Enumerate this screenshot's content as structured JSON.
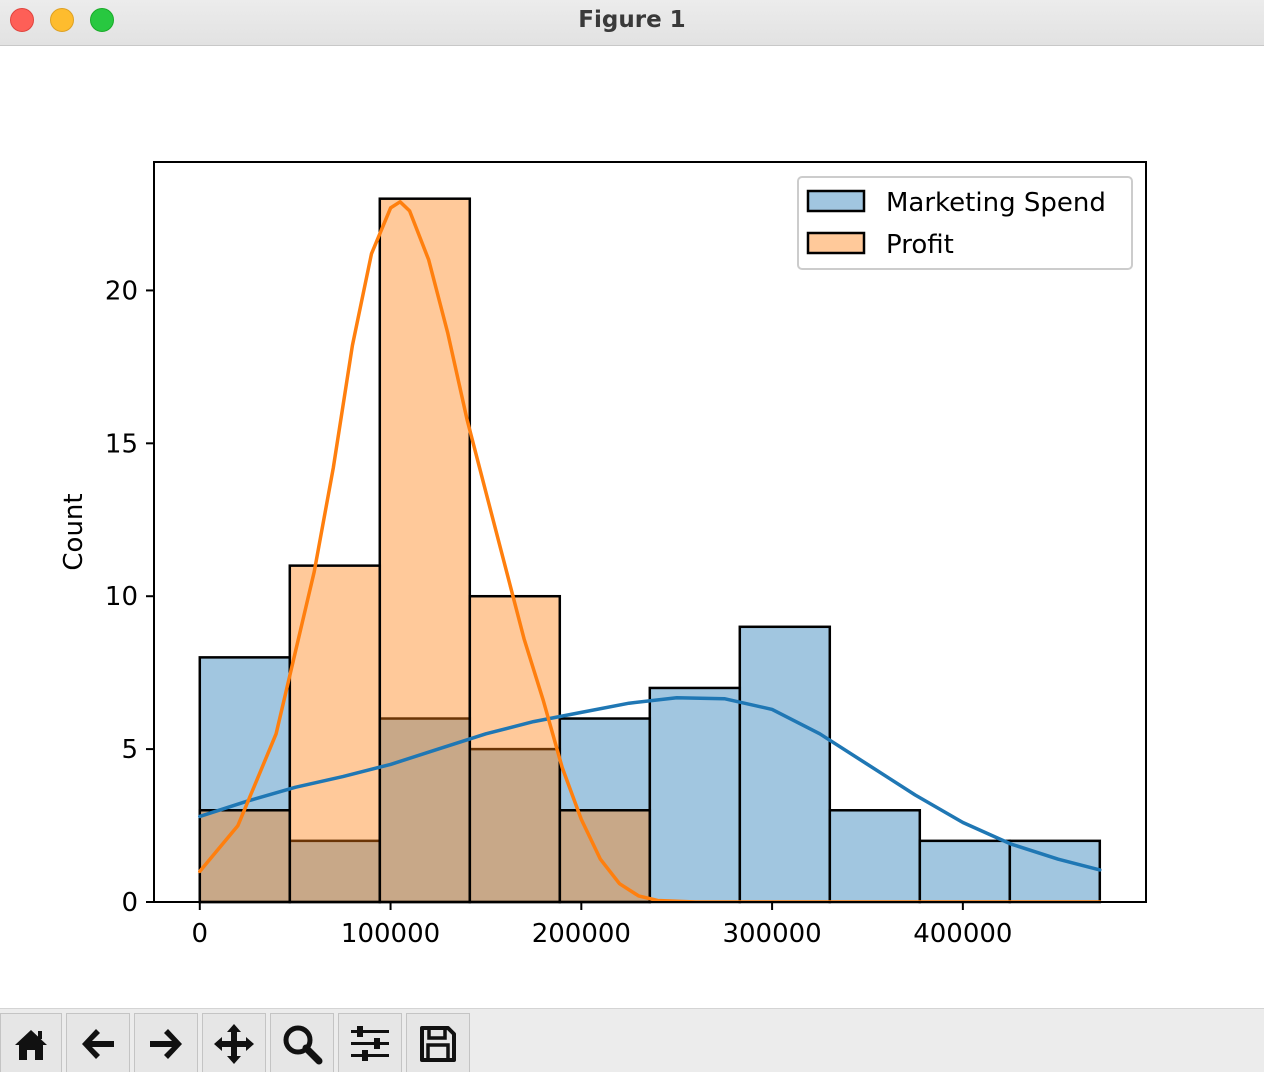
{
  "window": {
    "title": "Figure 1"
  },
  "toolbar": {
    "buttons": [
      {
        "icon": "home-icon"
      },
      {
        "icon": "back-arrow-icon"
      },
      {
        "icon": "forward-arrow-icon"
      },
      {
        "icon": "pan-move-icon"
      },
      {
        "icon": "zoom-magnifier-icon"
      },
      {
        "icon": "configure-subplots-icon"
      },
      {
        "icon": "save-disk-icon"
      }
    ]
  },
  "chart_data": {
    "type": "bar",
    "title": "",
    "xlabel": "",
    "ylabel": "Count",
    "xlim": [
      -24000,
      496000
    ],
    "ylim": [
      0,
      24.2
    ],
    "xticks": [
      0,
      100000,
      200000,
      300000,
      400000
    ],
    "xtick_labels": [
      "0",
      "100000",
      "200000",
      "300000",
      "400000"
    ],
    "yticks": [
      0,
      5,
      10,
      15,
      20
    ],
    "ytick_labels": [
      "0",
      "5",
      "10",
      "15",
      "20"
    ],
    "grid": false,
    "legend_position": "top-right",
    "bin_edges": [
      0,
      47178,
      94356,
      141534,
      188712,
      235890,
      283068,
      330246,
      377424,
      424602,
      471780
    ],
    "series": [
      {
        "name": "Marketing Spend",
        "color": "#1f77b4",
        "fill": "#a2c5df",
        "counts": [
          8,
          2,
          6,
          5,
          6,
          7,
          9,
          3,
          2,
          2
        ],
        "kde": {
          "x": [
            0,
            25000,
            50000,
            75000,
            100000,
            125000,
            150000,
            175000,
            200000,
            225000,
            250000,
            275000,
            300000,
            325000,
            350000,
            375000,
            400000,
            425000,
            450000,
            471780
          ],
          "y": [
            2.8,
            3.3,
            3.75,
            4.1,
            4.5,
            5.0,
            5.5,
            5.9,
            6.2,
            6.5,
            6.68,
            6.65,
            6.3,
            5.5,
            4.5,
            3.5,
            2.6,
            1.9,
            1.4,
            1.05
          ]
        }
      },
      {
        "name": "Profit",
        "color": "#ff7f0e",
        "fill": "#ffc699",
        "counts": [
          3,
          11,
          23,
          10,
          3,
          0,
          0,
          0,
          0,
          0
        ],
        "kde": {
          "x": [
            0,
            20000,
            40000,
            60000,
            70000,
            80000,
            90000,
            100000,
            105000,
            110000,
            120000,
            130000,
            140000,
            150000,
            160000,
            170000,
            180000,
            190000,
            200000,
            210000,
            220000,
            230000,
            240000,
            260000,
            300000,
            471780
          ],
          "y": [
            1.0,
            2.5,
            5.5,
            10.8,
            14.2,
            18.2,
            21.2,
            22.7,
            22.9,
            22.6,
            21.0,
            18.6,
            15.8,
            13.4,
            11.0,
            8.6,
            6.6,
            4.4,
            2.7,
            1.4,
            0.6,
            0.2,
            0.05,
            0.0,
            0.0,
            0.0
          ]
        }
      }
    ]
  }
}
